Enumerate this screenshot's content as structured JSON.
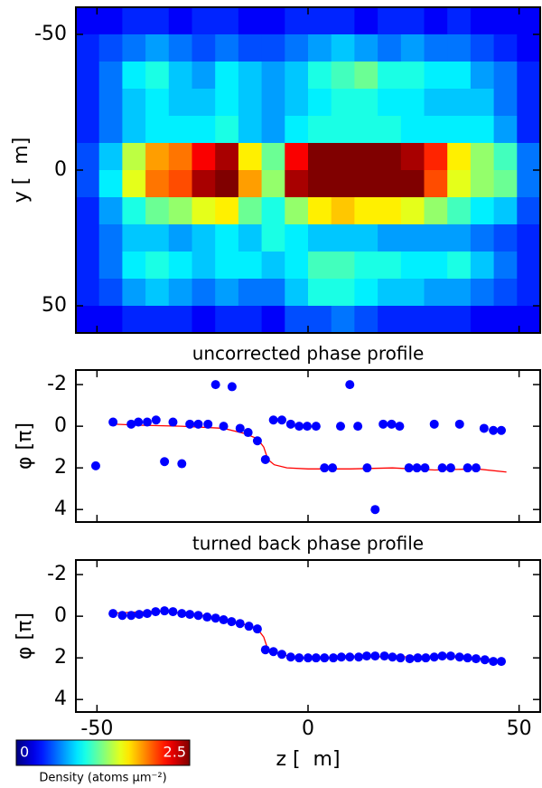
{
  "chart_data": [
    {
      "type": "heatmap",
      "ylabel": "y [  m]",
      "xlim": [
        -55,
        55
      ],
      "ylim": [
        -60,
        60
      ],
      "y_reversed": true,
      "xticks": [
        -50,
        0,
        50
      ],
      "yticks": [
        -50,
        0,
        50
      ],
      "show_xticklabels": false,
      "clim": [
        0,
        2.5
      ],
      "x": [
        -52.25,
        -46.75,
        -41.25,
        -35.75,
        -30.25,
        -24.75,
        -19.25,
        -13.75,
        -8.25,
        -2.75,
        2.75,
        8.25,
        13.75,
        19.25,
        24.75,
        30.25,
        35.75,
        41.25,
        46.75,
        52.25
      ],
      "y": [
        -55,
        -45,
        -35,
        -25,
        -15,
        -5,
        5,
        15,
        25,
        35,
        45,
        55
      ],
      "z": [
        [
          0.3,
          0.3,
          0.4,
          0.4,
          0.3,
          0.4,
          0.4,
          0.3,
          0.3,
          0.4,
          0.4,
          0.4,
          0.3,
          0.4,
          0.4,
          0.3,
          0.4,
          0.3,
          0.3,
          0.3
        ],
        [
          0.4,
          0.5,
          0.6,
          0.7,
          0.6,
          0.5,
          0.6,
          0.5,
          0.5,
          0.6,
          0.7,
          0.8,
          0.7,
          0.6,
          0.7,
          0.6,
          0.6,
          0.5,
          0.4,
          0.3
        ],
        [
          0.4,
          0.6,
          0.9,
          1.0,
          0.8,
          0.7,
          0.9,
          0.8,
          0.7,
          0.8,
          1.0,
          1.1,
          1.2,
          1.0,
          1.0,
          0.9,
          0.9,
          0.7,
          0.6,
          0.4
        ],
        [
          0.4,
          0.6,
          0.8,
          0.9,
          0.8,
          0.8,
          0.9,
          0.8,
          0.7,
          0.8,
          0.9,
          1.0,
          1.0,
          0.9,
          0.9,
          0.8,
          0.8,
          0.8,
          0.6,
          0.4
        ],
        [
          0.4,
          0.6,
          0.8,
          0.9,
          0.9,
          0.9,
          1.0,
          0.8,
          0.7,
          0.9,
          1.0,
          1.0,
          1.0,
          1.0,
          0.9,
          0.9,
          0.9,
          0.9,
          0.7,
          0.4
        ],
        [
          0.5,
          0.8,
          1.4,
          1.8,
          1.9,
          2.2,
          2.4,
          1.6,
          1.2,
          2.2,
          2.5,
          2.5,
          2.5,
          2.5,
          2.4,
          2.1,
          1.6,
          1.3,
          1.1,
          0.6
        ],
        [
          0.5,
          0.9,
          1.5,
          1.9,
          2.0,
          2.4,
          2.5,
          1.8,
          1.3,
          2.4,
          2.5,
          2.5,
          2.5,
          2.5,
          2.5,
          2.0,
          1.5,
          1.3,
          1.2,
          0.6
        ],
        [
          0.4,
          0.7,
          1.0,
          1.2,
          1.3,
          1.5,
          1.6,
          1.2,
          1.0,
          1.3,
          1.6,
          1.7,
          1.6,
          1.6,
          1.5,
          1.3,
          1.1,
          0.9,
          0.8,
          0.5
        ],
        [
          0.4,
          0.6,
          0.8,
          0.8,
          0.7,
          0.8,
          0.9,
          0.8,
          1.0,
          0.9,
          0.8,
          0.8,
          0.8,
          0.7,
          0.7,
          0.7,
          0.7,
          0.6,
          0.5,
          0.4
        ],
        [
          0.4,
          0.6,
          0.9,
          1.0,
          0.9,
          0.8,
          0.9,
          0.9,
          0.8,
          0.9,
          1.1,
          1.1,
          1.0,
          1.0,
          0.9,
          0.9,
          1.0,
          0.8,
          0.6,
          0.4
        ],
        [
          0.4,
          0.5,
          0.7,
          0.8,
          0.7,
          0.6,
          0.7,
          0.6,
          0.6,
          0.8,
          1.0,
          1.0,
          0.9,
          0.8,
          0.8,
          0.7,
          0.7,
          0.6,
          0.5,
          0.4
        ],
        [
          0.3,
          0.3,
          0.4,
          0.4,
          0.4,
          0.3,
          0.4,
          0.4,
          0.3,
          0.5,
          0.5,
          0.6,
          0.5,
          0.4,
          0.4,
          0.4,
          0.4,
          0.3,
          0.3,
          0.3
        ]
      ]
    },
    {
      "type": "scatter",
      "title": "uncorrected phase profile",
      "ylabel": "φ [π]",
      "xlim": [
        -55,
        55
      ],
      "ylim": [
        -2.7,
        4.6
      ],
      "y_reversed": true,
      "xticks": [
        -50,
        0,
        50
      ],
      "yticks": [
        -2,
        0,
        2,
        4
      ],
      "show_xticklabels": false,
      "points": {
        "color": "#0000ff",
        "x": [
          -46.2,
          -50.3,
          -41.9,
          -40.2,
          -38.1,
          -36,
          -34,
          -32,
          -29.9,
          -28,
          -26,
          -23.7,
          -21.9,
          -20,
          -18,
          -16.1,
          -14.2,
          -12,
          -10.1,
          -8.2,
          -6.2,
          -4.1,
          -2.1,
          -0.2,
          1.9,
          3.9,
          5.8,
          7.7,
          9.9,
          11.8,
          14,
          15.9,
          17.8,
          19.8,
          21.7,
          23.9,
          25.8,
          27.7,
          29.9,
          31.8,
          33.8,
          35.9,
          37.8,
          39.8,
          41.7,
          43.9,
          45.8
        ],
        "y": [
          -0.2,
          1.9,
          -0.1,
          -0.2,
          -0.2,
          -0.3,
          1.7,
          -0.2,
          1.8,
          -0.1,
          -0.1,
          -0.1,
          -2,
          0,
          -1.9,
          0.1,
          0.3,
          0.7,
          1.6,
          -0.3,
          -0.3,
          -0.1,
          0,
          0,
          0,
          2,
          2,
          0,
          -2,
          0,
          2,
          4,
          -0.1,
          -0.1,
          0,
          2,
          2,
          2,
          -0.1,
          2,
          2,
          -0.1,
          2,
          2,
          0.1,
          0.2,
          0.2
        ]
      },
      "fit": {
        "color": "#ff0000",
        "x": [
          -46,
          -40,
          -30,
          -20,
          -15,
          -12,
          -10.5,
          -9.5,
          -8,
          -5,
          0,
          10,
          20,
          30,
          40,
          47
        ],
        "y": [
          -0.1,
          -0.05,
          0,
          0.1,
          0.35,
          0.6,
          1.0,
          1.6,
          1.85,
          2.0,
          2.05,
          2.05,
          2.0,
          2.1,
          2.05,
          2.2
        ]
      }
    },
    {
      "type": "scatter",
      "title": "turned back phase profile",
      "ylabel": "φ [π]",
      "xlabel": "z [  m]",
      "xlim": [
        -55,
        55
      ],
      "ylim": [
        -2.7,
        4.6
      ],
      "y_reversed": true,
      "xticks": [
        -50,
        0,
        50
      ],
      "yticks": [
        -2,
        0,
        2,
        4
      ],
      "show_xticklabels": true,
      "points": {
        "color": "#0000ff",
        "x": [
          -46.2,
          -44,
          -41.9,
          -40,
          -38.1,
          -36.1,
          -34,
          -32,
          -29.9,
          -28,
          -26,
          -23.9,
          -21.9,
          -20,
          -18.1,
          -16.1,
          -14,
          -12,
          -10.1,
          -8.2,
          -6.2,
          -4.1,
          -2.1,
          0,
          1.9,
          3.9,
          6.0,
          7.9,
          9.9,
          12,
          13.9,
          15.9,
          18.1,
          20,
          21.9,
          24.1,
          26,
          27.9,
          29.9,
          31.8,
          33.8,
          35.9,
          37.8,
          39.8,
          41.9,
          43.9,
          45.8
        ],
        "y": [
          -0.13,
          -0.04,
          -0.04,
          -0.09,
          -0.13,
          -0.22,
          -0.26,
          -0.22,
          -0.13,
          -0.09,
          -0.04,
          0.04,
          0.09,
          0.17,
          0.26,
          0.35,
          0.48,
          0.61,
          1.61,
          1.7,
          1.83,
          1.96,
          2.0,
          2.0,
          2.0,
          2.0,
          2.0,
          1.96,
          1.96,
          1.96,
          1.91,
          1.91,
          1.91,
          1.96,
          2.0,
          2.04,
          2.0,
          2.0,
          1.96,
          1.91,
          1.91,
          1.96,
          2.0,
          2.04,
          2.09,
          2.17,
          2.17
        ]
      },
      "fit": {
        "color": "#ff0000",
        "x": [
          -46,
          -35,
          -25,
          -18,
          -14,
          -12,
          -10.5,
          -9.5,
          -6,
          -2,
          10,
          20,
          30,
          40,
          46
        ],
        "y": [
          -0.15,
          -0.25,
          -0.05,
          0.25,
          0.45,
          0.6,
          1.0,
          1.6,
          1.85,
          2.0,
          1.95,
          1.95,
          1.95,
          2.0,
          2.15
        ]
      }
    },
    {
      "type": "colorbar",
      "label": "Density (atoms µm⁻²)",
      "ticks": [
        0,
        2.5
      ]
    }
  ]
}
